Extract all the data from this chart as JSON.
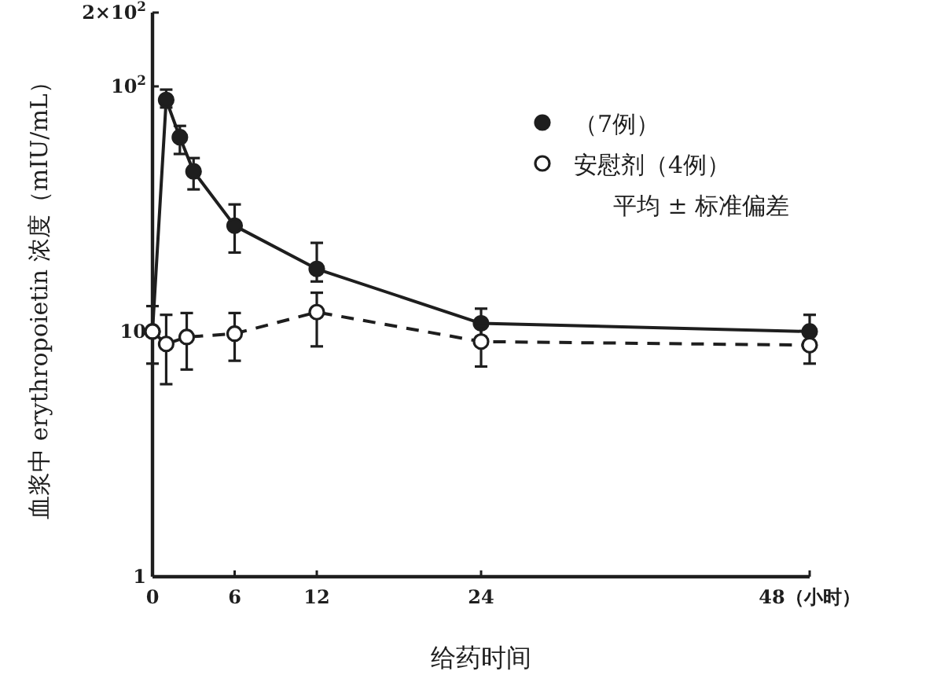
{
  "chart_data": {
    "type": "line",
    "xlabel": "给药时间",
    "ylabel": "血浆中 erythropoietin 浓度（mIU/mL）",
    "log": "y",
    "xlim": [
      0,
      48
    ],
    "ylim": [
      1,
      200
    ],
    "xticks": [
      0,
      6,
      12,
      24,
      {
        "value": 48,
        "label": "48（小时）"
      }
    ],
    "yticks": [
      1,
      10,
      {
        "value": 100,
        "label": "10$^{2}$"
      },
      {
        "value": 200,
        "label": "2×10$^{2}$"
      }
    ],
    "legend": "top right",
    "grid": false,
    "marker": "circle",
    "annotations": [
      "平均 ± 标准偏差"
    ],
    "series": [
      {
        "name": "（7例）",
        "color": "#1e1e1e",
        "line_style": "solid",
        "x": [
          0,
          1,
          2,
          3,
          6,
          12,
          24,
          48
        ],
        "values": [
          10,
          88,
          62,
          45,
          27,
          18,
          10.8,
          10
        ],
        "errors": [
          null,
          [
            82,
            97
          ],
          [
            53,
            69
          ],
          [
            38,
            51
          ],
          [
            21,
            33
          ],
          [
            16,
            23
          ],
          [
            9.5,
            12.4
          ],
          [
            9,
            11.7
          ]
        ]
      },
      {
        "name": "安慰剂（4例）",
        "color": "#1e1e1e",
        "line_style": "dashed",
        "x": [
          0,
          1,
          2.5,
          6,
          12,
          24,
          48
        ],
        "values": [
          10,
          8.9,
          9.5,
          9.8,
          12,
          9.1,
          8.8
        ],
        "errors": [
          [
            7.4,
            12.7
          ],
          [
            6.1,
            11.7
          ],
          [
            7,
            11.9
          ],
          [
            7.6,
            11.9
          ],
          [
            8.7,
            14.4
          ],
          [
            7.2,
            10.5
          ],
          [
            7.4,
            9.7
          ]
        ]
      }
    ]
  }
}
